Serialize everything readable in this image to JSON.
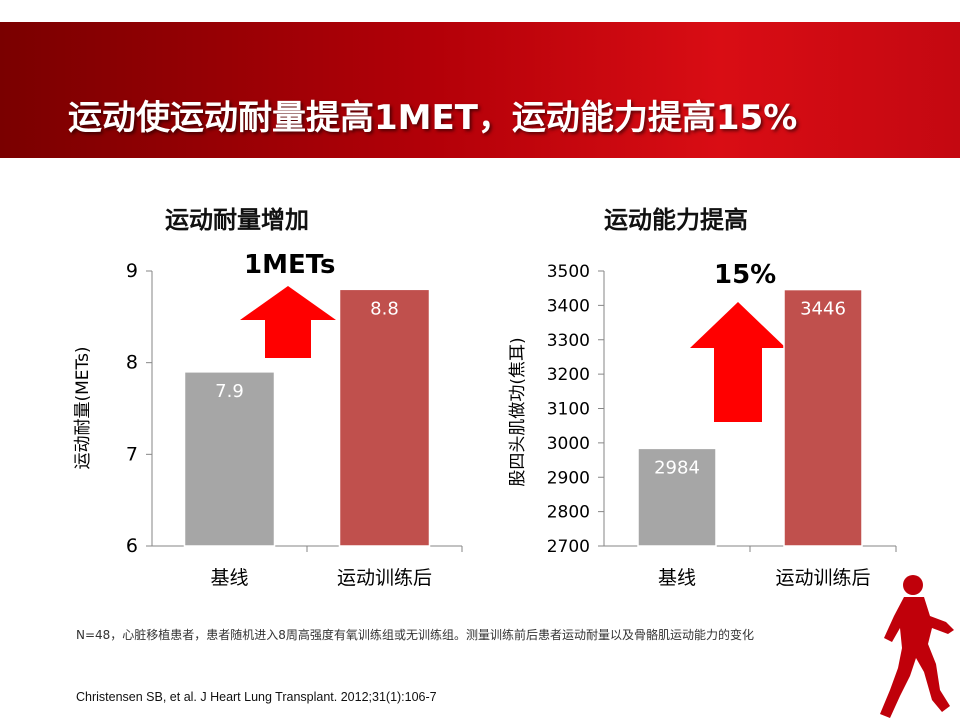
{
  "slide": {
    "title": "运动使运动耐量提高1MET，运动能力提高15%",
    "footnote": "N=48，心脏移植患者，患者随机进入8周高强度有氧训练组或无训练组。测量训练前后患者运动耐量以及骨骼肌运动能力的变化",
    "citation": "Christensen SB, et al. J Heart Lung Transplant. 2012;31(1):106-7",
    "colors": {
      "header_red": "#c00000",
      "bar_gray": "#a6a6a6",
      "bar_red": "#c0504d",
      "arrow_red": "#ff0000"
    }
  },
  "chart_data": [
    {
      "type": "bar",
      "title": "运动耐量增加",
      "annotation": "1METs",
      "ylabel": "运动耐量(METs)",
      "categories": [
        "基线",
        "运动训练后"
      ],
      "values": [
        7.9,
        8.8
      ],
      "data_labels": [
        "7.9",
        "8.8"
      ],
      "ylim": [
        6,
        9
      ],
      "yticks": [
        6,
        7,
        8,
        9
      ],
      "bar_colors": [
        "#a6a6a6",
        "#c0504d"
      ]
    },
    {
      "type": "bar",
      "title": "运动能力提高",
      "annotation": "15%",
      "ylabel": "股四头肌做功(焦耳)",
      "categories": [
        "基线",
        "运动训练后"
      ],
      "values": [
        2984,
        3446
      ],
      "data_labels": [
        "2984",
        "3446"
      ],
      "ylim": [
        2700,
        3500
      ],
      "yticks": [
        2700,
        2800,
        2900,
        3000,
        3100,
        3200,
        3300,
        3400,
        3500
      ],
      "bar_colors": [
        "#a6a6a6",
        "#c0504d"
      ]
    }
  ]
}
